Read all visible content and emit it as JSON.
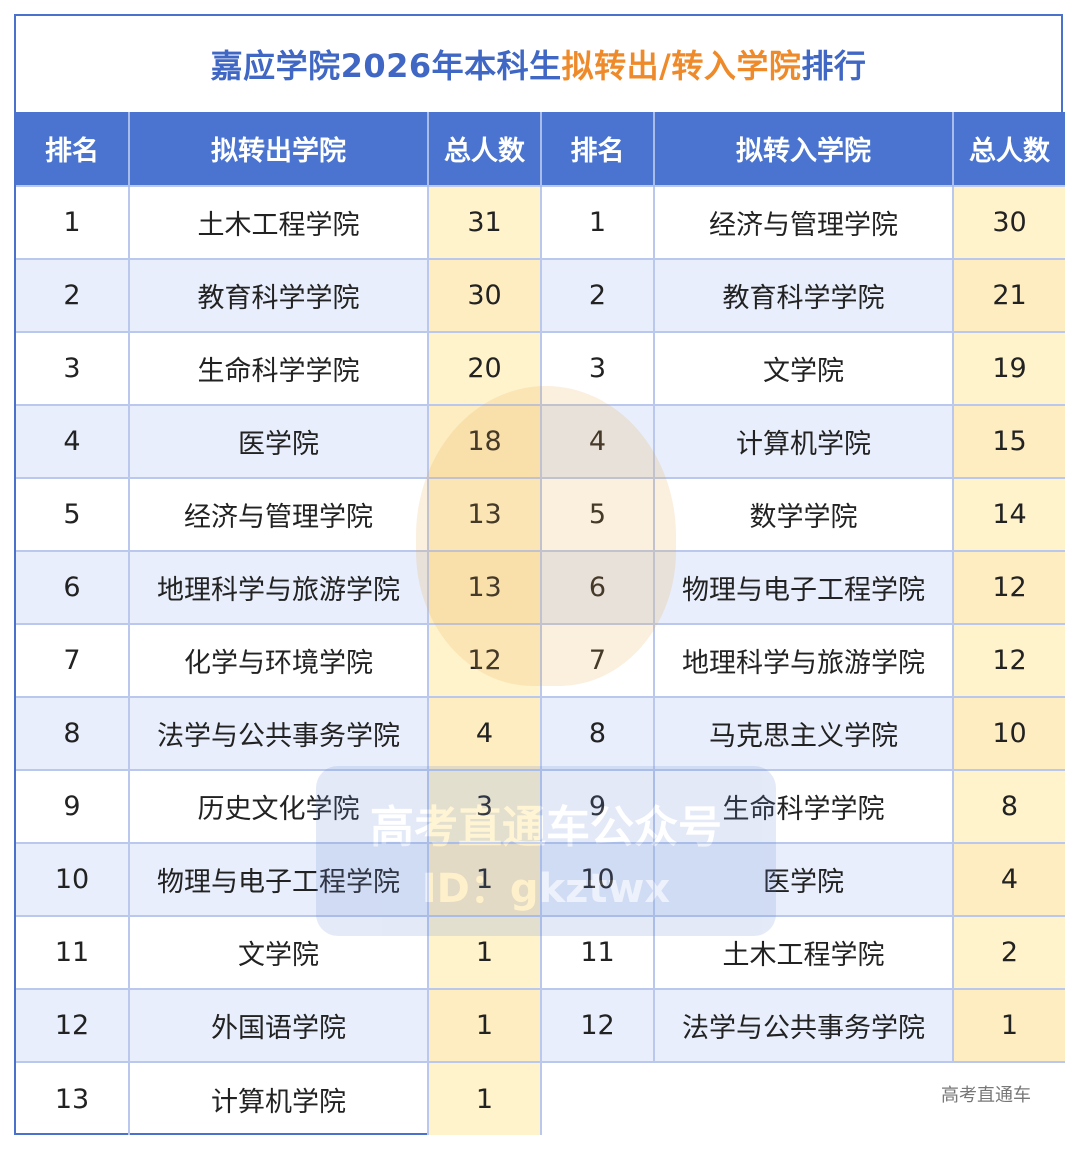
{
  "title": {
    "part1": "嘉应学院2026年本科生",
    "part2": "拟转出/转入学院",
    "part3": "排行"
  },
  "headers": {
    "out_rank": "排名",
    "out_college": "拟转出学院",
    "out_count": "总人数",
    "in_rank": "排名",
    "in_college": "拟转入学院",
    "in_count": "总人数"
  },
  "transfer_out": [
    {
      "rank": "1",
      "college": "土木工程学院",
      "count": "31"
    },
    {
      "rank": "2",
      "college": "教育科学学院",
      "count": "30"
    },
    {
      "rank": "3",
      "college": "生命科学学院",
      "count": "20"
    },
    {
      "rank": "4",
      "college": "医学院",
      "count": "18"
    },
    {
      "rank": "5",
      "college": "经济与管理学院",
      "count": "13"
    },
    {
      "rank": "6",
      "college": "地理科学与旅游学院",
      "count": "13"
    },
    {
      "rank": "7",
      "college": "化学与环境学院",
      "count": "12"
    },
    {
      "rank": "8",
      "college": "法学与公共事务学院",
      "count": "4"
    },
    {
      "rank": "9",
      "college": "历史文化学院",
      "count": "3"
    },
    {
      "rank": "10",
      "college": "物理与电子工程学院",
      "count": "1"
    },
    {
      "rank": "11",
      "college": "文学院",
      "count": "1"
    },
    {
      "rank": "12",
      "college": "外国语学院",
      "count": "1"
    },
    {
      "rank": "13",
      "college": "计算机学院",
      "count": "1"
    }
  ],
  "transfer_in": [
    {
      "rank": "1",
      "college": "经济与管理学院",
      "count": "30"
    },
    {
      "rank": "2",
      "college": "教育科学学院",
      "count": "21"
    },
    {
      "rank": "3",
      "college": "文学院",
      "count": "19"
    },
    {
      "rank": "4",
      "college": "计算机学院",
      "count": "15"
    },
    {
      "rank": "5",
      "college": "数学学院",
      "count": "14"
    },
    {
      "rank": "6",
      "college": "物理与电子工程学院",
      "count": "12"
    },
    {
      "rank": "7",
      "college": "地理科学与旅游学院",
      "count": "12"
    },
    {
      "rank": "8",
      "college": "马克思主义学院",
      "count": "10"
    },
    {
      "rank": "9",
      "college": "生命科学学院",
      "count": "8"
    },
    {
      "rank": "10",
      "college": "医学院",
      "count": "4"
    },
    {
      "rank": "11",
      "college": "土木工程学院",
      "count": "2"
    },
    {
      "rank": "12",
      "college": "法学与公共事务学院",
      "count": "1"
    }
  ],
  "watermark": {
    "line1": "高考直通车公众号",
    "line2": "ID：gkztwx"
  },
  "credit": "高考直通车",
  "colors": {
    "header_bg": "#4a74cf",
    "title_blue": "#3f67c3",
    "title_orange": "#ef8a2a",
    "count_bg": "#fff3cc",
    "stripe_bg": "#e8eefb"
  }
}
